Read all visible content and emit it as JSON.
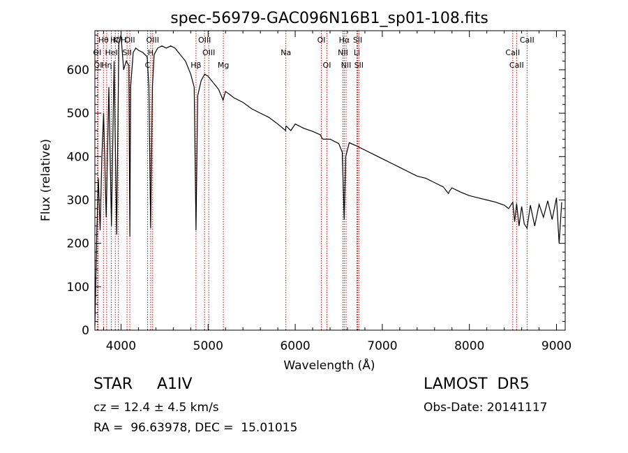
{
  "chart_data": {
    "type": "line",
    "title": "spec-56979-GAC096N16B1_sp01-108.fits",
    "xlabel": "Wavelength (Å)",
    "ylabel": "Flux (relative)",
    "xlim": [
      3700,
      9100
    ],
    "ylim": [
      0,
      690
    ],
    "xticks": [
      4000,
      5000,
      6000,
      7000,
      8000,
      9000
    ],
    "yticks": [
      0,
      100,
      200,
      300,
      400,
      500,
      600
    ],
    "grid": false,
    "series": [
      {
        "line_color": "#000000",
        "x": [
          3700,
          3720,
          3740,
          3760,
          3780,
          3800,
          3830,
          3860,
          3890,
          3920,
          3950,
          3975,
          4000,
          4030,
          4060,
          4090,
          4101,
          4110,
          4140,
          4170,
          4200,
          4250,
          4300,
          4320,
          4340,
          4360,
          4380,
          4420,
          4470,
          4520,
          4570,
          4620,
          4680,
          4740,
          4800,
          4840,
          4861,
          4880,
          4920,
          4960,
          5000,
          5060,
          5120,
          5172,
          5200,
          5300,
          5400,
          5500,
          5600,
          5700,
          5800,
          5890,
          5893,
          5900,
          5950,
          6000,
          6100,
          6200,
          6290,
          6300,
          6320,
          6400,
          6500,
          6540,
          6563,
          6580,
          6620,
          6700,
          6800,
          6900,
          7000,
          7100,
          7200,
          7300,
          7400,
          7500,
          7600,
          7700,
          7760,
          7770,
          7800,
          7900,
          8000,
          8100,
          8200,
          8300,
          8400,
          8450,
          8498,
          8520,
          8542,
          8570,
          8600,
          8630,
          8662,
          8700,
          8750,
          8800,
          8850,
          8900,
          8950,
          9000,
          9030,
          9060
        ],
        "y": [
          10,
          210,
          350,
          230,
          400,
          500,
          260,
          560,
          240,
          620,
          220,
          660,
          680,
          600,
          620,
          610,
          215,
          560,
          640,
          650,
          645,
          640,
          630,
          560,
          235,
          560,
          635,
          650,
          655,
          650,
          655,
          650,
          635,
          620,
          590,
          560,
          230,
          540,
          575,
          590,
          585,
          570,
          555,
          530,
          550,
          535,
          525,
          510,
          500,
          490,
          475,
          460,
          470,
          470,
          460,
          475,
          465,
          458,
          450,
          445,
          440,
          440,
          430,
          410,
          255,
          400,
          432,
          425,
          415,
          405,
          395,
          385,
          375,
          365,
          355,
          350,
          340,
          330,
          315,
          320,
          328,
          318,
          310,
          305,
          300,
          295,
          288,
          280,
          295,
          250,
          292,
          240,
          285,
          245,
          235,
          288,
          240,
          290,
          260,
          298,
          255,
          305,
          200,
          295
        ]
      }
    ],
    "line_markers": [
      {
        "label": "Hθ",
        "x": 3798,
        "row": 0
      },
      {
        "label": "K",
        "x": 3934,
        "row": 0
      },
      {
        "label": "HδH",
        "x": 3970,
        "row": 0
      },
      {
        "label": "OII",
        "x": 4101,
        "row": 0
      },
      {
        "label": "OIII",
        "x": 4363,
        "row": 0
      },
      {
        "label": "OIII",
        "x": 4959,
        "row": 0
      },
      {
        "label": "OI",
        "x": 6300,
        "row": 0
      },
      {
        "label": "Hα",
        "x": 6563,
        "row": 0
      },
      {
        "label": "SII",
        "x": 6717,
        "row": 0
      },
      {
        "label": "CaII",
        "x": 8662,
        "row": 0
      },
      {
        "label": "OI",
        "x": 3727,
        "row": 1
      },
      {
        "label": "HeI",
        "x": 3889,
        "row": 1
      },
      {
        "label": "SII",
        "x": 4069,
        "row": 1
      },
      {
        "label": "H",
        "x": 4340,
        "row": 1
      },
      {
        "label": "OIII",
        "x": 5007,
        "row": 1
      },
      {
        "label": "Na",
        "x": 5893,
        "row": 1
      },
      {
        "label": "NII",
        "x": 6548,
        "row": 1
      },
      {
        "label": "Li",
        "x": 6708,
        "row": 1
      },
      {
        "label": "CaII",
        "x": 8498,
        "row": 1
      },
      {
        "label": "OI",
        "x": 3736,
        "row": 2
      },
      {
        "label": "Hη",
        "x": 3835,
        "row": 2
      },
      {
        "label": "C",
        "x": 4305,
        "row": 2
      },
      {
        "label": "Hβ",
        "x": 4861,
        "row": 2
      },
      {
        "label": "Mg",
        "x": 5175,
        "row": 2
      },
      {
        "label": "OI",
        "x": 6364,
        "row": 2
      },
      {
        "label": "NII",
        "x": 6584,
        "row": 2
      },
      {
        "label": "SII",
        "x": 6731,
        "row": 2
      },
      {
        "label": "CaII",
        "x": 8542,
        "row": 2
      }
    ],
    "marker_color": "#cc0000"
  },
  "info": {
    "object_class": "STAR     A1IV",
    "survey": "LAMOST  DR5",
    "redshift": "cz = 12.4 ± 4.5 km/s",
    "obs_date": "Obs-Date: 20141117",
    "coords": "RA =  96.63978, DEC =  15.01015"
  }
}
